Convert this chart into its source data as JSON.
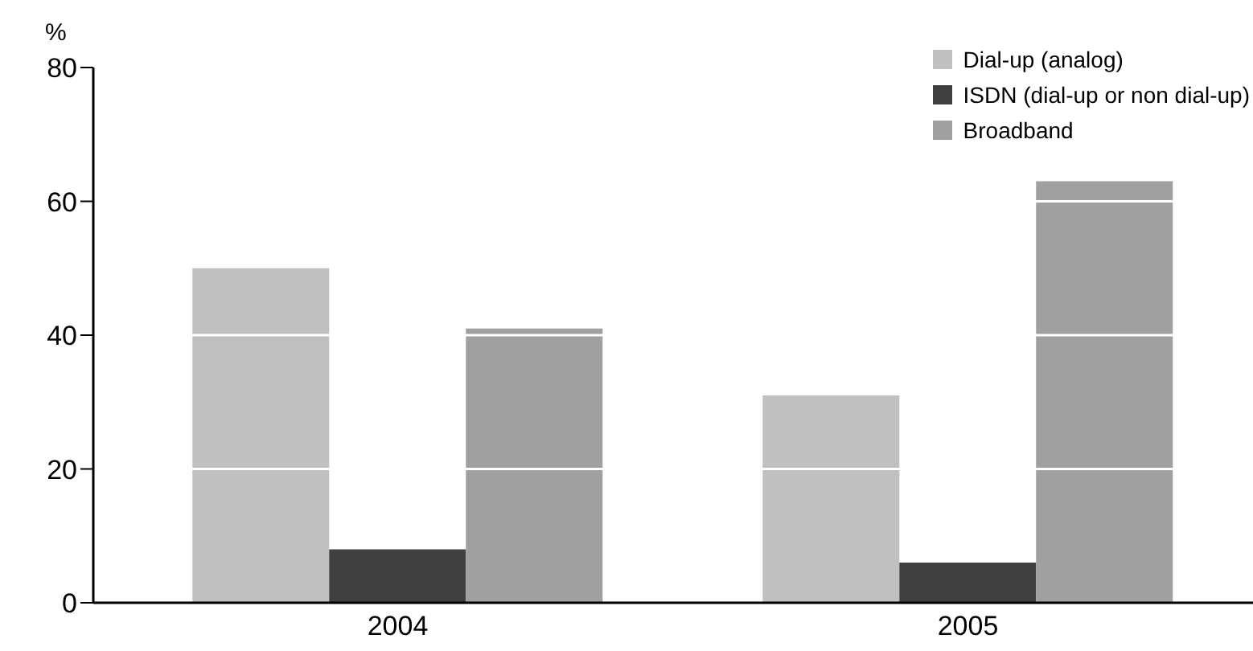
{
  "chart_data": {
    "type": "bar",
    "ylabel": "%",
    "categories": [
      "2004",
      "2005"
    ],
    "series": [
      {
        "name": "Dial-up (analog)",
        "color": "#c0c0c0",
        "values": [
          50,
          31
        ]
      },
      {
        "name": "ISDN (dial-up or non dial-up)",
        "color": "#404040",
        "values": [
          8,
          6
        ]
      },
      {
        "name": "Broadband",
        "color": "#a0a0a0",
        "values": [
          41,
          63
        ]
      }
    ],
    "ylim": [
      0,
      80
    ],
    "yticks": [
      0,
      20,
      40,
      60,
      80
    ],
    "grid": "y",
    "legend": "top right"
  }
}
